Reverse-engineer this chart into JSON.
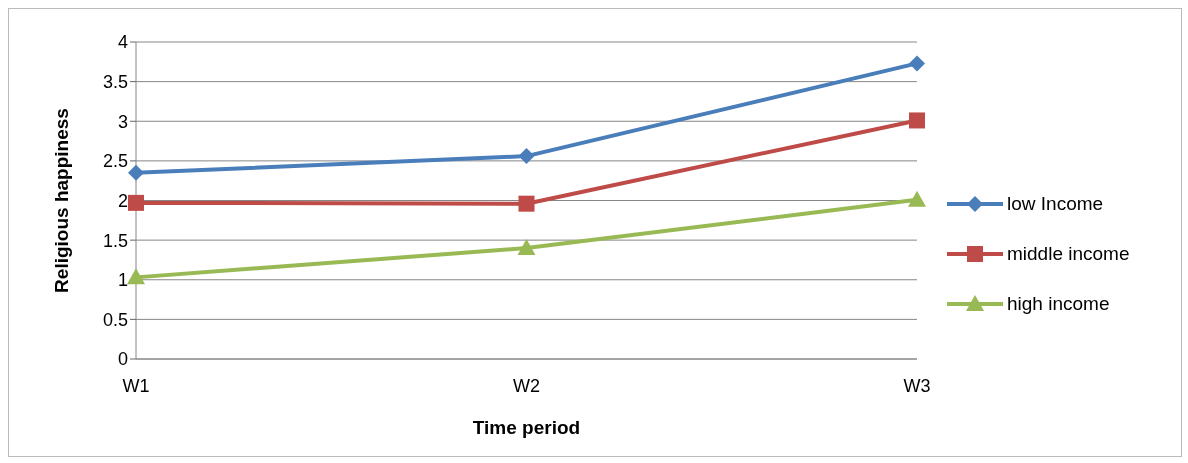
{
  "chart_data": {
    "type": "line",
    "xlabel": "Time period",
    "ylabel": "Religious happiness",
    "categories": [
      "W1",
      "W2",
      "W3"
    ],
    "series": [
      {
        "name": "low Income",
        "color": "#4a7ebb",
        "marker": "diamond",
        "values": [
          2.35,
          2.56,
          3.73
        ]
      },
      {
        "name": "middle income",
        "color": "#be4b48",
        "marker": "square",
        "values": [
          1.97,
          1.96,
          3.01
        ]
      },
      {
        "name": "high income",
        "color": "#98b954",
        "marker": "triangle",
        "values": [
          1.03,
          1.4,
          2.01
        ]
      }
    ],
    "ylim": [
      0,
      4
    ],
    "yticks": [
      0,
      0.5,
      1,
      1.5,
      2,
      2.5,
      3,
      3.5,
      4
    ],
    "grid": "y",
    "legend": "right",
    "line_style": "solid"
  }
}
